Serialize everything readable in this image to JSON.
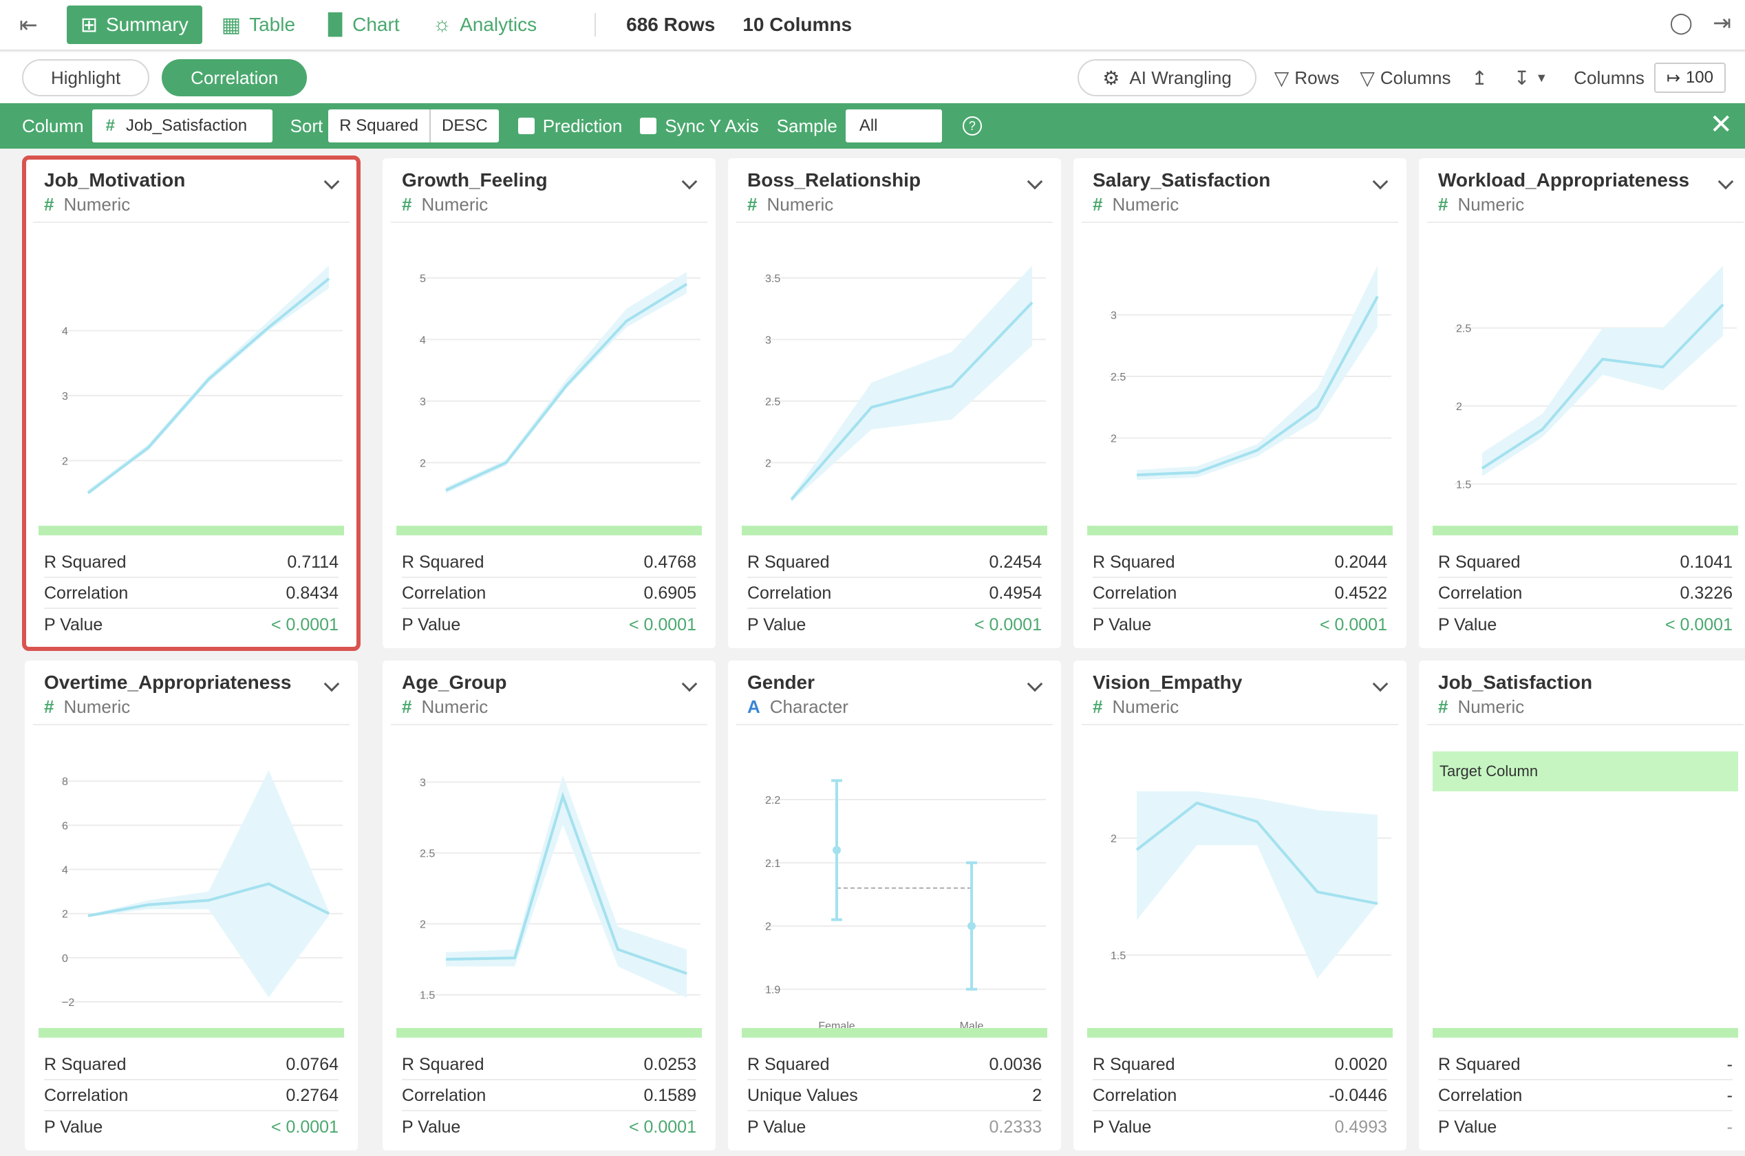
{
  "toolbar": {
    "tabs": [
      {
        "label": "Summary",
        "icon": "grid-icon",
        "active": true
      },
      {
        "label": "Table",
        "icon": "table-icon",
        "active": false
      },
      {
        "label": "Chart",
        "icon": "bar-chart-icon",
        "active": false
      },
      {
        "label": "Analytics",
        "icon": "lightbulb-icon",
        "active": false
      }
    ],
    "rows_count": "686",
    "rows_label": "Rows",
    "cols_count": "10",
    "cols_label": "Columns"
  },
  "subbar": {
    "highlight": "Highlight",
    "correlation": "Correlation",
    "ai_wrangling": "AI Wrangling",
    "rows": "Rows",
    "columns": "Columns",
    "columns_label": "Columns",
    "columns_limit": "100"
  },
  "corrbar": {
    "column_label": "Column",
    "column_value": "Job_Satisfaction",
    "sort_label": "Sort",
    "sort_by": "R Squared",
    "sort_order": "DESC",
    "prediction": "Prediction",
    "sync_y": "Sync Y Axis",
    "sample_label": "Sample",
    "sample_value": "All"
  },
  "colors": {
    "accent": "#4aa86e",
    "line": "#a4e1ef",
    "band": "#e4f6fb",
    "selected": "#d9534f"
  },
  "cards": [
    {
      "title": "Job_Motivation",
      "type": "Numeric",
      "selected": true,
      "stats": [
        {
          "label": "R Squared",
          "value": "0.7114"
        },
        {
          "label": "Correlation",
          "value": "0.8434"
        },
        {
          "label": "P Value",
          "value": "< 0.0001",
          "tone": "green"
        }
      ],
      "chart_data": {
        "type": "line",
        "x": [
          1,
          2,
          3,
          4,
          5
        ],
        "y": [
          1.5,
          2.2,
          3.25,
          4.05,
          4.8
        ],
        "band_low": [
          1.5,
          2.15,
          3.2,
          4.0,
          4.65
        ],
        "band_high": [
          1.55,
          2.25,
          3.3,
          4.15,
          5.0
        ],
        "xlim": [
          1,
          5
        ],
        "ylim": [
          1.4,
          5.0
        ],
        "xticks": [
          "1",
          "2",
          "3",
          "4",
          "5"
        ],
        "yticks": [
          2,
          3,
          4
        ],
        "ytick_labels": [
          "2",
          "3",
          "4"
        ]
      }
    },
    {
      "title": "Growth_Feeling",
      "type": "Numeric",
      "selected": false,
      "stats": [
        {
          "label": "R Squared",
          "value": "0.4768"
        },
        {
          "label": "Correlation",
          "value": "0.6905"
        },
        {
          "label": "P Value",
          "value": "< 0.0001",
          "tone": "green"
        }
      ],
      "chart_data": {
        "type": "line",
        "x": [
          1,
          2,
          3,
          4,
          5
        ],
        "y": [
          1.55,
          2.0,
          3.25,
          4.3,
          4.9
        ],
        "band_low": [
          1.5,
          1.95,
          3.2,
          4.2,
          4.75
        ],
        "band_high": [
          1.6,
          2.05,
          3.35,
          4.5,
          5.1
        ],
        "xlim": [
          1,
          5
        ],
        "ylim": [
          1.4,
          5.2
        ],
        "xticks": [
          "1",
          "2",
          "3",
          "4",
          "5"
        ],
        "yticks": [
          2,
          3,
          4,
          5
        ],
        "ytick_labels": [
          "2",
          "3",
          "4",
          "5"
        ]
      }
    },
    {
      "title": "Boss_Relationship",
      "type": "Numeric",
      "selected": false,
      "stats": [
        {
          "label": "R Squared",
          "value": "0.2454"
        },
        {
          "label": "Correlation",
          "value": "0.4954"
        },
        {
          "label": "P Value",
          "value": "< 0.0001",
          "tone": "green"
        }
      ],
      "chart_data": {
        "type": "line",
        "x": [
          2,
          3,
          4,
          5
        ],
        "y": [
          1.7,
          2.45,
          2.62,
          3.3
        ],
        "band_low": [
          1.68,
          2.27,
          2.35,
          2.95
        ],
        "band_high": [
          1.72,
          2.65,
          2.9,
          3.6
        ],
        "xlim": [
          2,
          5
        ],
        "ylim": [
          1.7,
          3.6
        ],
        "xticks": [
          "2",
          "2.5",
          "3",
          "3.5",
          "4",
          "4.5",
          "5"
        ],
        "yticks": [
          2,
          2.5,
          3,
          3.5
        ],
        "ytick_labels": [
          "2",
          "2.5",
          "3",
          "3.5"
        ]
      }
    },
    {
      "title": "Salary_Satisfaction",
      "type": "Numeric",
      "selected": false,
      "stats": [
        {
          "label": "R Squared",
          "value": "0.2044"
        },
        {
          "label": "Correlation",
          "value": "0.4522"
        },
        {
          "label": "P Value",
          "value": "< 0.0001",
          "tone": "green"
        }
      ],
      "chart_data": {
        "type": "line",
        "x": [
          1,
          2,
          3,
          4,
          5
        ],
        "y": [
          1.7,
          1.72,
          1.9,
          2.25,
          3.15
        ],
        "band_low": [
          1.66,
          1.68,
          1.85,
          2.15,
          2.9
        ],
        "band_high": [
          1.74,
          1.77,
          1.95,
          2.4,
          3.4
        ],
        "xlim": [
          1,
          5
        ],
        "ylim": [
          1.5,
          3.4
        ],
        "xticks": [
          "1",
          "2",
          "3",
          "4",
          "5"
        ],
        "yticks": [
          2,
          2.5,
          3
        ],
        "ytick_labels": [
          "2",
          "2.5",
          "3"
        ]
      }
    },
    {
      "title": "Workload_Appropriateness",
      "type": "Numeric",
      "selected": false,
      "stats": [
        {
          "label": "R Squared",
          "value": "0.1041"
        },
        {
          "label": "Correlation",
          "value": "0.3226"
        },
        {
          "label": "P Value",
          "value": "< 0.0001",
          "tone": "green"
        }
      ],
      "chart_data": {
        "type": "line",
        "x": [
          1,
          2,
          3,
          4,
          5
        ],
        "y": [
          1.6,
          1.85,
          2.3,
          2.25,
          2.65
        ],
        "band_low": [
          1.55,
          1.8,
          2.2,
          2.1,
          2.45
        ],
        "band_high": [
          1.7,
          1.95,
          2.5,
          2.5,
          2.9
        ],
        "xlim": [
          1,
          5
        ],
        "ylim": [
          1.4,
          2.9
        ],
        "xticks": [
          "1",
          "2",
          "3",
          "4",
          "5"
        ],
        "yticks": [
          1.5,
          2,
          2.5
        ],
        "ytick_labels": [
          "1.5",
          "2",
          "2.5"
        ]
      }
    },
    {
      "title": "Overtime_Appropriateness",
      "type": "Numeric",
      "selected": false,
      "stats": [
        {
          "label": "R Squared",
          "value": "0.0764"
        },
        {
          "label": "Correlation",
          "value": "0.2764"
        },
        {
          "label": "P Value",
          "value": "< 0.0001",
          "tone": "green"
        }
      ],
      "chart_data": {
        "type": "line",
        "x": [
          1,
          2,
          3,
          4,
          5
        ],
        "y": [
          1.9,
          2.4,
          2.6,
          3.35,
          2.0
        ],
        "band_low": [
          1.85,
          2.2,
          2.2,
          -1.8,
          1.9
        ],
        "band_high": [
          1.95,
          2.6,
          3.0,
          8.5,
          2.1
        ],
        "xlim": [
          1,
          5
        ],
        "ylim": [
          -2,
          8.6
        ],
        "xticks": [
          "1",
          "2",
          "3",
          "4",
          "5"
        ],
        "yticks": [
          -2,
          0,
          2,
          4,
          6,
          8
        ],
        "ytick_labels": [
          "−2",
          "0",
          "2",
          "4",
          "6",
          "8"
        ]
      }
    },
    {
      "title": "Age_Group",
      "type": "Numeric",
      "selected": false,
      "stats": [
        {
          "label": "R Squared",
          "value": "0.0253"
        },
        {
          "label": "Correlation",
          "value": "0.1589"
        },
        {
          "label": "P Value",
          "value": "< 0.0001",
          "tone": "green"
        }
      ],
      "chart_data": {
        "type": "line",
        "x": [
          20,
          30,
          37,
          45,
          55
        ],
        "y": [
          1.75,
          1.76,
          2.9,
          1.82,
          1.65
        ],
        "band_low": [
          1.7,
          1.7,
          2.7,
          1.7,
          1.48
        ],
        "band_high": [
          1.8,
          1.82,
          3.05,
          1.98,
          1.82
        ],
        "xlim": [
          20,
          55
        ],
        "ylim": [
          1.45,
          3.1
        ],
        "xticks": [
          "20",
          "30",
          "40",
          "50"
        ],
        "xtick_values": [
          20,
          30,
          40,
          50
        ],
        "yticks": [
          1.5,
          2,
          2.5,
          3
        ],
        "ytick_labels": [
          "1.5",
          "2",
          "2.5",
          "3"
        ]
      }
    },
    {
      "title": "Gender",
      "type": "Character",
      "selected": false,
      "stats": [
        {
          "label": "R Squared",
          "value": "0.0036"
        },
        {
          "label": "Unique Values",
          "value": "2"
        },
        {
          "label": "P Value",
          "value": "0.2333",
          "tone": "gray"
        }
      ],
      "chart_data": {
        "type": "errorbar",
        "categories": [
          "Female",
          "Male"
        ],
        "means": [
          2.12,
          2.0
        ],
        "lows": [
          2.01,
          1.9
        ],
        "highs": [
          2.23,
          2.1
        ],
        "overall_mean": 2.06,
        "ylim": [
          1.88,
          2.25
        ],
        "yticks": [
          1.9,
          2,
          2.1,
          2.2
        ],
        "ytick_labels": [
          "1.9",
          "2",
          "2.1",
          "2.2"
        ]
      }
    },
    {
      "title": "Vision_Empathy",
      "type": "Numeric",
      "selected": false,
      "stats": [
        {
          "label": "R Squared",
          "value": "0.0020"
        },
        {
          "label": "Correlation",
          "value": "-0.0446"
        },
        {
          "label": "P Value",
          "value": "0.4993",
          "tone": "gray"
        }
      ],
      "chart_data": {
        "type": "line",
        "x": [
          1,
          2,
          3,
          4,
          5
        ],
        "y": [
          1.95,
          2.15,
          2.07,
          1.77,
          1.72
        ],
        "band_low": [
          1.65,
          1.97,
          1.97,
          1.4,
          1.72
        ],
        "band_high": [
          2.2,
          2.2,
          2.17,
          2.12,
          2.1
        ],
        "xlim": [
          1,
          5
        ],
        "ylim": [
          1.3,
          2.3
        ],
        "xticks": [
          "1",
          "2",
          "3",
          "4",
          "5"
        ],
        "yticks": [
          1.5,
          2
        ],
        "ytick_labels": [
          "1.5",
          "2"
        ]
      }
    },
    {
      "title": "Job_Satisfaction",
      "type": "Numeric",
      "selected": false,
      "target": "Target Column",
      "stats": [
        {
          "label": "R Squared",
          "value": "-"
        },
        {
          "label": "Correlation",
          "value": "-"
        },
        {
          "label": "P Value",
          "value": "-",
          "tone": "gray"
        }
      ],
      "chart_data": null
    }
  ]
}
